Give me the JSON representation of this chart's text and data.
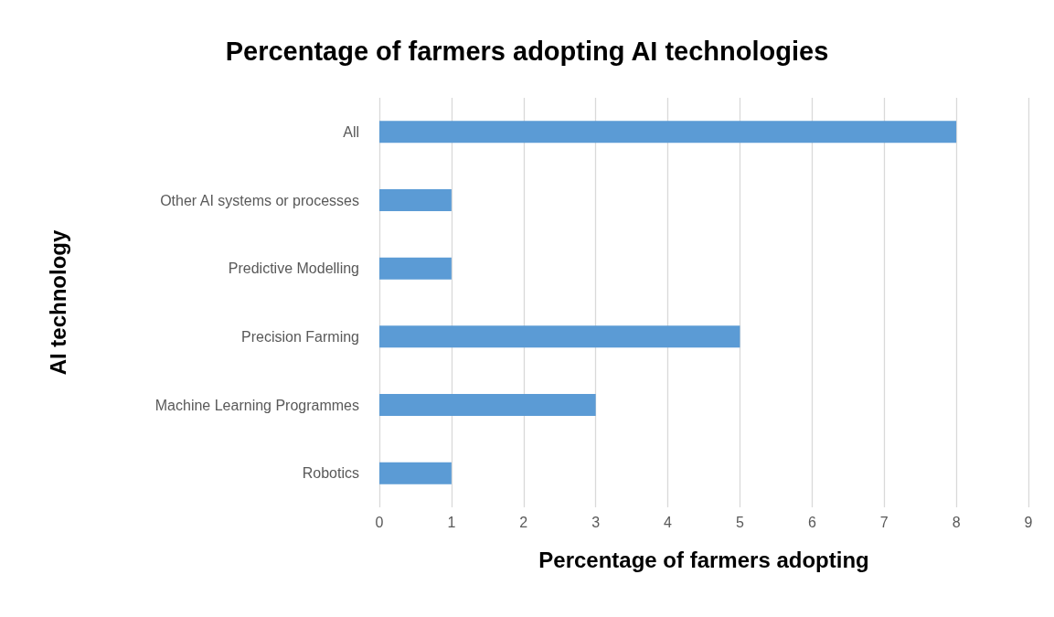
{
  "chart_data": {
    "type": "bar",
    "orientation": "horizontal",
    "title": "Percentage of farmers adopting AI technologies",
    "xlabel": "Percentage of farmers adopting",
    "ylabel": "AI technology",
    "categories": [
      "All",
      "Other AI systems or processes",
      "Predictive Modelling",
      "Precision Farming",
      "Machine Learning Programmes",
      "Robotics"
    ],
    "values": [
      8,
      1,
      1,
      5,
      3,
      1
    ],
    "color": "#5b9bd5",
    "xlim": [
      0,
      9
    ],
    "xticks": [
      0,
      1,
      2,
      3,
      4,
      5,
      6,
      7,
      8,
      9
    ],
    "grid": "x"
  }
}
